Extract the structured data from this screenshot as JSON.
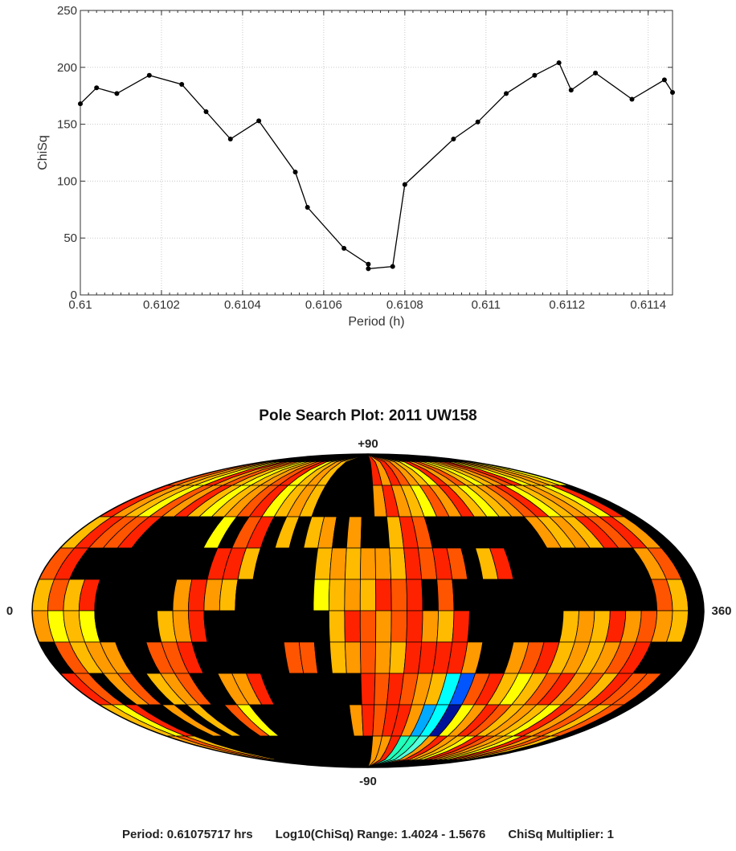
{
  "chart_data": [
    {
      "type": "line",
      "title": "",
      "xlabel": "Period (h)",
      "ylabel": "ChiSq",
      "xlim": [
        0.61,
        0.61146
      ],
      "ylim": [
        0,
        250
      ],
      "grid": true,
      "x_ticks": [
        "0.61",
        "0.6102",
        "0.6104",
        "0.6106",
        "0.6108",
        "0.611",
        "0.6112",
        "0.6114"
      ],
      "y_ticks": [
        "0",
        "50",
        "100",
        "150",
        "200",
        "250"
      ],
      "series": [
        {
          "color": "#000000",
          "x": [
            0.61,
            0.61004,
            0.61009,
            0.61017,
            0.61025,
            0.61031,
            0.61037,
            0.61044,
            0.61053,
            0.61056,
            0.61065,
            0.61071,
            0.61071,
            0.61077,
            0.6108,
            0.61092,
            0.61098,
            0.61105,
            0.61112,
            0.61118,
            0.61121,
            0.61127,
            0.61136,
            0.61144,
            0.61146
          ],
          "y": [
            168,
            182,
            177,
            193,
            185,
            161,
            137,
            153,
            108,
            77,
            41,
            27,
            23,
            25,
            97,
            137,
            152,
            177,
            193,
            204,
            180,
            195,
            172,
            189,
            178
          ]
        }
      ]
    },
    {
      "type": "heatmap",
      "title": "Pole Search Plot: 2011 UW158",
      "top_label": "+90",
      "bottom_label": "-90",
      "left_label": "0",
      "right_label": "360",
      "projection": "aitoff",
      "grid": {
        "longitude_step": 10,
        "latitude_step": 15
      },
      "palette": {
        "K": "#000000",
        "R": "#ff2200",
        "D": "#ff5500",
        "O": "#ff9a00",
        "G": "#ffbb00",
        "Y": "#ffff00",
        "C": "#00ffff",
        "A": "#00aaff",
        "B": "#0055ff",
        "N": "#001199",
        "T": "#22ffbb",
        "L": "#55ffdd"
      },
      "rows": [
        "DOGYRODGYGODRYGOGKKKKKRORDOGYRODGYGODRYGOGY",
        "ROGYDORGYGODRYGOGKKKKKOROGYDORGYGODRYGOGYR",
        "GRDDRKKKKKYKDRKGKGOKOKKGRDKKKKKKKKOGOGRDRO",
        "DRKKKKKKKKKRRGKKKKGOGOOGRDRDKGRKKKKKKKKKOD",
        "GDGRKKKKKOROGKKKKKYGOGRDRKDKKKKKKKKKKKKKDG",
        "OYGYKKKKGORKKKKKKKKGRDODROGRKKKKKKGOGRODOG",
        "KDGOOKKDDRKKKKKKDDKGODOGRRRROKKODRGOGODRKK",
        "RDKODKGODKKOORKKKKKKKRDRDOGCBDRGYGDRODGRDD",
        "GYRKKOKGKKDYKKKKKKKKORDRROACNYORDGOGYRODGD",
        "ODGKKKKKKKKKKKKKKKKKKKOORTTLOROGYRDOGYRODG"
      ],
      "range_text": "Log10(ChiSq) Range: 1.4024 - 1.5676"
    }
  ],
  "footer": {
    "period": "Period: 0.61075717 hrs",
    "range": "Log10(ChiSq) Range: 1.4024 - 1.5676",
    "multiplier": "ChiSq Multiplier: 1"
  }
}
